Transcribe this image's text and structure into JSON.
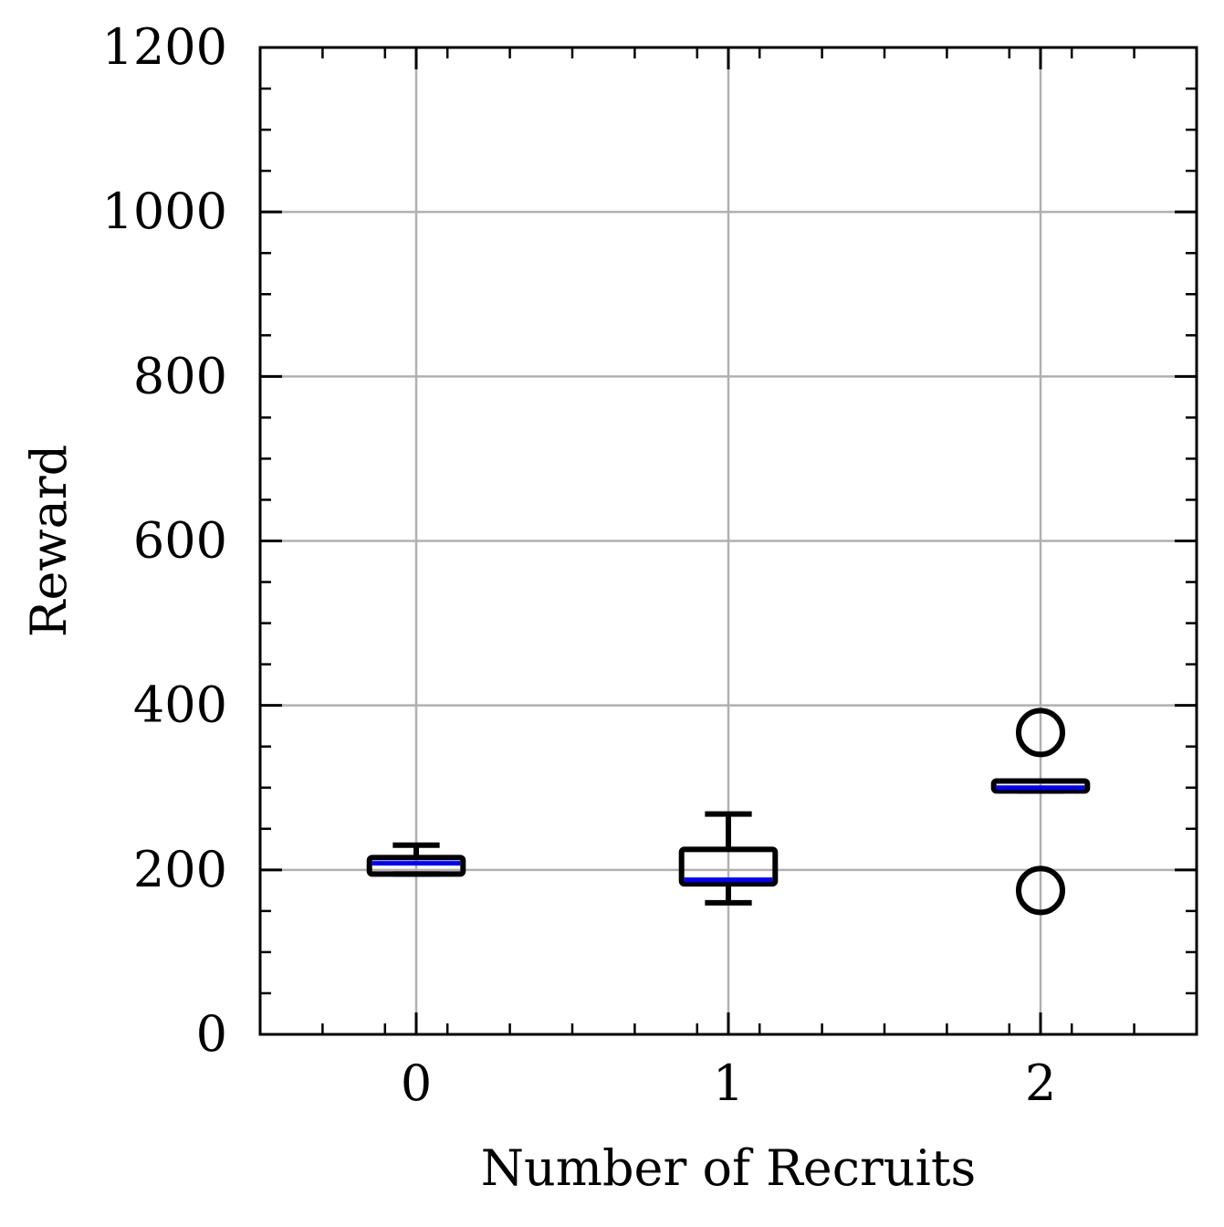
{
  "chart_data": {
    "type": "box",
    "xlabel": "Number of Recruits",
    "ylabel": "Reward",
    "ylim": [
      0,
      1200
    ],
    "xlim": [
      -0.5,
      2.5
    ],
    "yticks": [
      0,
      200,
      400,
      600,
      800,
      1000,
      1200
    ],
    "yminor_step": 50,
    "xticks": [
      0,
      1,
      2
    ],
    "xminor_step": 0.2,
    "grid": true,
    "colors": {
      "box": "#000000",
      "median": "#0000ff",
      "grid": "#b0b0b0"
    },
    "boxes": [
      {
        "x": 0,
        "label": "0",
        "whisker_low": 195,
        "q1": 195,
        "median": 208,
        "q3": 215,
        "whisker_high": 230,
        "outliers": []
      },
      {
        "x": 1,
        "label": "1",
        "whisker_low": 160,
        "q1": 183,
        "median": 188,
        "q3": 225,
        "whisker_high": 268,
        "outliers": []
      },
      {
        "x": 2,
        "label": "2",
        "whisker_low": 296,
        "q1": 296,
        "median": 300,
        "q3": 308,
        "whisker_high": 308,
        "outliers": [
          367,
          175
        ]
      }
    ]
  }
}
